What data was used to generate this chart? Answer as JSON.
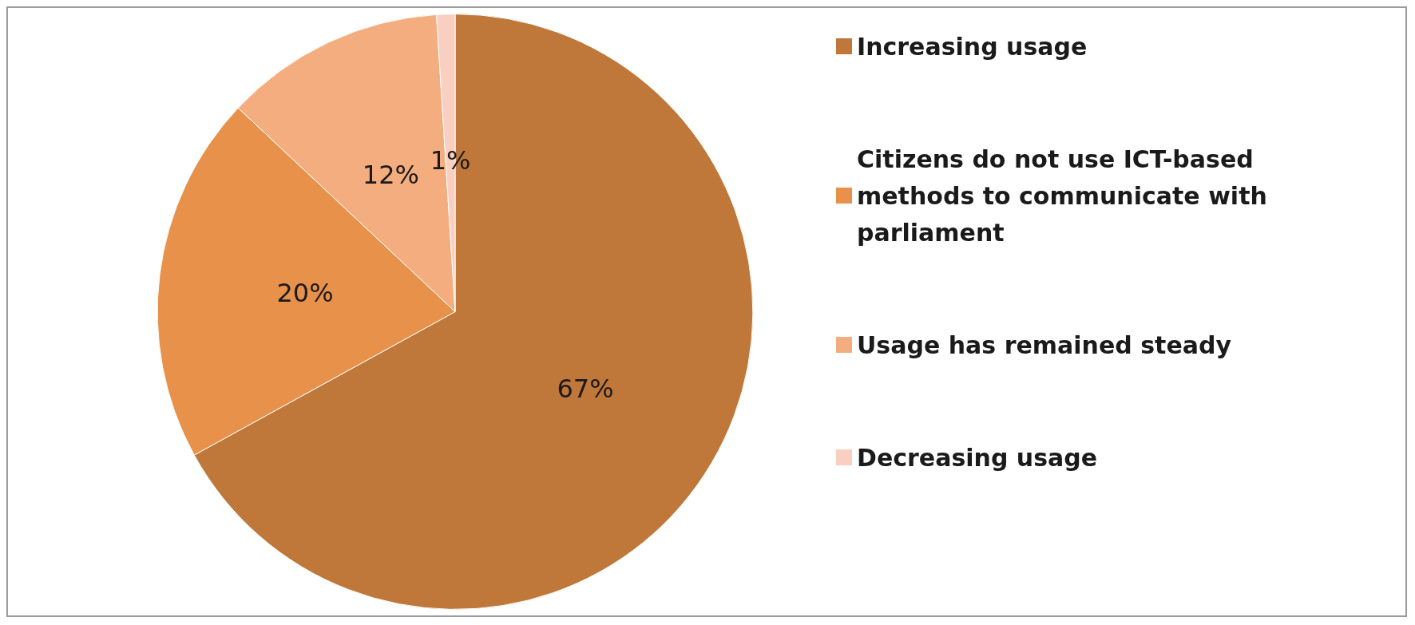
{
  "chart_data": {
    "type": "pie",
    "categories": [
      "Increasing usage",
      "Citizens do not use ICT-based methods to communicate with parliament",
      "Usage has remained steady",
      "Decreasing usage"
    ],
    "values": [
      67,
      20,
      12,
      1
    ],
    "colors": [
      "#c0773a",
      "#e8914a",
      "#f4ad7e",
      "#f8cfc0"
    ],
    "value_labels": [
      "67%",
      "20%",
      "12%",
      "1%"
    ],
    "legend": "right"
  }
}
